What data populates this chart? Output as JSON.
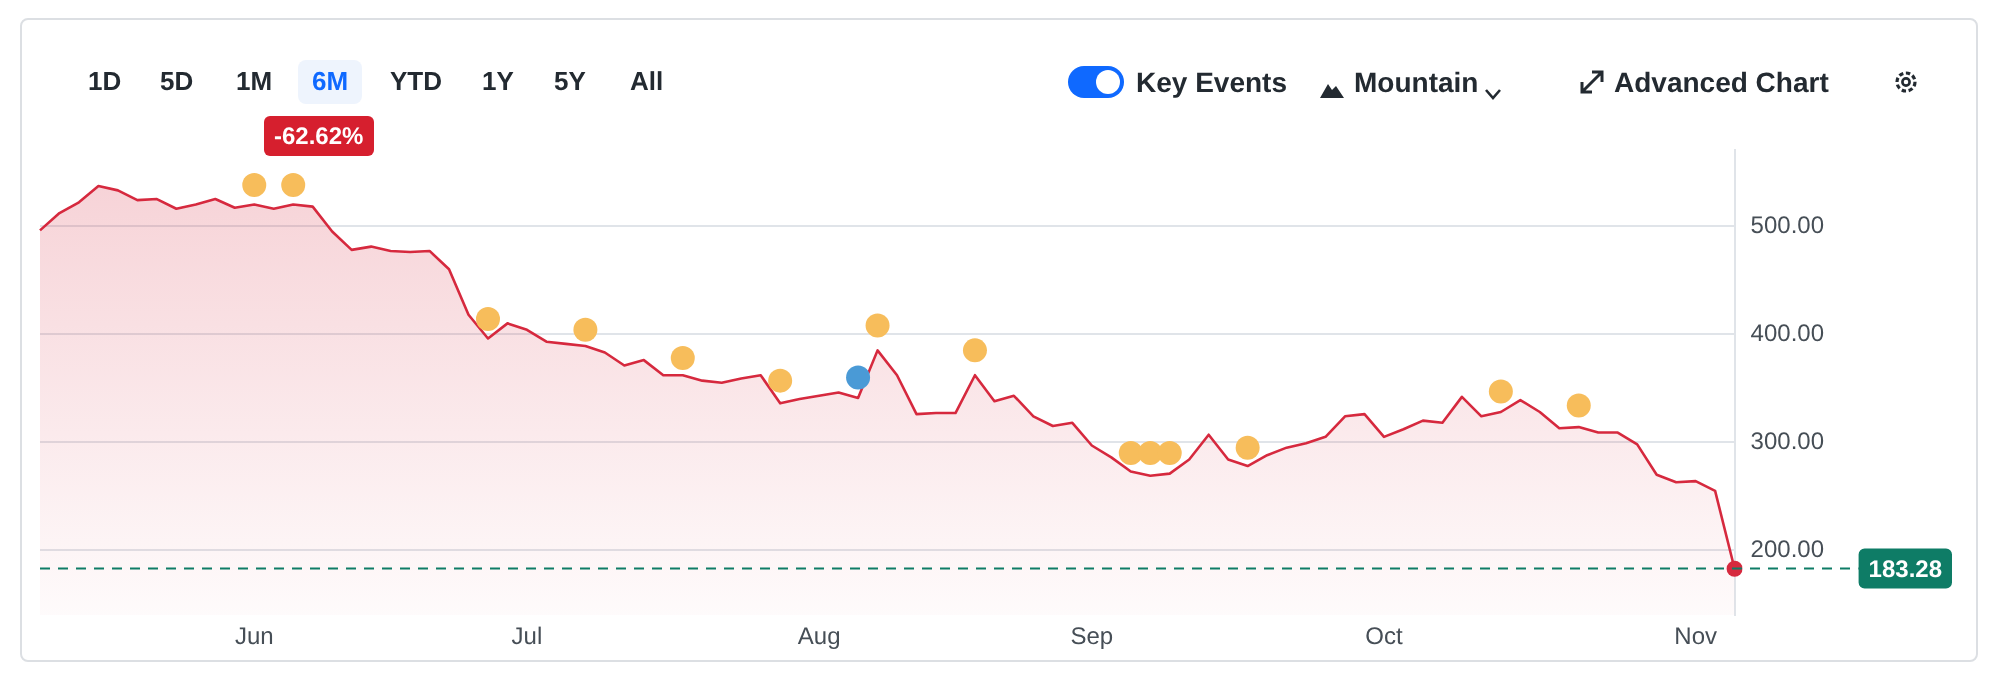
{
  "chart_data": {
    "type": "area",
    "categories": [
      null,
      null,
      null,
      null,
      null,
      null,
      null,
      null,
      null,
      null,
      null,
      "Jun",
      null,
      null,
      null,
      null,
      null,
      null,
      null,
      null,
      null,
      null,
      null,
      null,
      null,
      "Jul",
      null,
      null,
      null,
      null,
      null,
      null,
      null,
      null,
      null,
      null,
      null,
      null,
      null,
      null,
      "Aug",
      null,
      null,
      null,
      null,
      null,
      null,
      null,
      null,
      null,
      null,
      null,
      null,
      null,
      "Sep",
      null,
      null,
      null,
      null,
      null,
      null,
      null,
      null,
      null,
      null,
      null,
      null,
      null,
      null,
      "Oct",
      null,
      null,
      null,
      null,
      null,
      null,
      null,
      null,
      null,
      null,
      null,
      null,
      null,
      null,
      null,
      "Nov",
      null,
      null
    ],
    "series": [
      {
        "type": "area",
        "color": "#d6293e",
        "values": [
          496,
          512,
          522,
          537,
          533,
          524,
          525,
          516,
          520,
          525,
          517,
          520,
          516,
          520,
          518,
          495,
          478,
          481,
          477,
          476,
          477,
          460,
          418,
          396,
          410,
          404,
          393,
          391,
          389,
          383,
          371,
          376,
          362,
          362,
          357,
          355,
          359,
          362,
          336,
          340,
          343,
          346,
          341,
          385,
          362,
          326,
          327,
          327,
          362,
          338,
          343,
          324,
          315,
          318,
          297,
          286,
          273,
          269,
          271,
          284,
          307,
          284,
          278,
          288,
          295,
          299,
          305,
          324,
          326,
          305,
          312,
          320,
          318,
          342,
          324,
          328,
          339,
          328,
          313,
          314,
          309,
          309,
          298,
          270,
          263,
          264,
          255,
          183
        ]
      },
      {
        "type": "scatter",
        "color": "#f7bd5b",
        "values": [
          null,
          null,
          null,
          null,
          null,
          null,
          null,
          null,
          null,
          null,
          null,
          538,
          null,
          538,
          null,
          null,
          null,
          null,
          null,
          null,
          null,
          null,
          null,
          414,
          null,
          null,
          null,
          null,
          404,
          null,
          null,
          null,
          null,
          378,
          null,
          null,
          null,
          null,
          357,
          null,
          null,
          null,
          null,
          408,
          null,
          null,
          null,
          null,
          385,
          null,
          null,
          null,
          null,
          null,
          null,
          null,
          290,
          290,
          290,
          null,
          null,
          null,
          295,
          null,
          null,
          null,
          null,
          null,
          null,
          null,
          null,
          null,
          null,
          null,
          null,
          347,
          null,
          null,
          null,
          334,
          null,
          null,
          null,
          null,
          null,
          null,
          null,
          null
        ]
      },
      {
        "type": "scatter",
        "color": "#4a9ad6",
        "values": [
          null,
          null,
          null,
          null,
          null,
          null,
          null,
          null,
          null,
          null,
          null,
          null,
          null,
          null,
          null,
          null,
          null,
          null,
          null,
          null,
          null,
          null,
          null,
          null,
          null,
          null,
          null,
          null,
          null,
          null,
          null,
          null,
          null,
          null,
          null,
          null,
          null,
          null,
          null,
          null,
          null,
          null,
          360,
          null,
          null,
          null,
          null,
          null,
          null,
          null,
          null,
          null,
          null,
          null,
          null,
          null,
          null,
          null,
          null,
          null,
          null,
          null,
          null,
          null,
          null,
          null,
          null,
          null,
          null,
          null,
          null,
          null,
          null,
          null,
          null,
          null,
          null,
          null,
          null,
          null,
          null,
          null,
          null,
          null,
          null,
          null,
          null,
          null
        ]
      }
    ],
    "ylim": [
      140,
      570
    ],
    "yticks": [
      {
        "value": 200,
        "label": "200.00"
      },
      {
        "value": 300,
        "label": "300.00"
      },
      {
        "value": 400,
        "label": "400.00"
      },
      {
        "value": 500,
        "label": "500.00"
      }
    ],
    "grid": "y",
    "legend": false,
    "ref_lines": [
      {
        "axis": "y",
        "value": 183.28,
        "label": "183.28",
        "color": "#0e7c66",
        "line_style": "dashed"
      }
    ],
    "annotations": [
      "1D",
      "5D",
      "1M",
      "6M",
      "YTD",
      "1Y",
      "5Y",
      "All",
      "Key Events",
      "Mountain",
      "Advanced Chart",
      "-62.62%"
    ]
  }
}
